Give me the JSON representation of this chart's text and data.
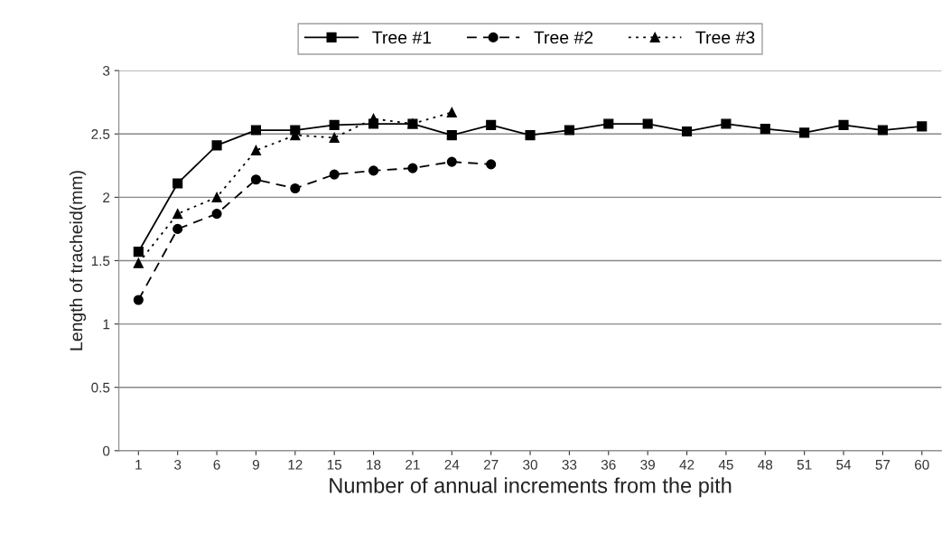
{
  "chart_data": {
    "type": "line",
    "xlabel": "Number of annual increments from the pith",
    "ylabel": "Length of tracheid(mm)",
    "categories": [
      "1",
      "3",
      "6",
      "9",
      "12",
      "15",
      "18",
      "21",
      "24",
      "27",
      "30",
      "33",
      "36",
      "39",
      "42",
      "45",
      "48",
      "51",
      "54",
      "57",
      "60"
    ],
    "series": [
      {
        "name": "Tree #1",
        "color": "#000000",
        "marker": "square",
        "line_style": "solid",
        "values": [
          1.57,
          2.11,
          2.41,
          2.53,
          2.53,
          2.57,
          2.58,
          2.58,
          2.49,
          2.57,
          2.49,
          2.53,
          2.58,
          2.58,
          2.52,
          2.58,
          2.54,
          2.51,
          2.57,
          2.53,
          2.56
        ]
      },
      {
        "name": "Tree #2",
        "color": "#000000",
        "marker": "circle",
        "line_style": "dashed",
        "values": [
          1.19,
          1.75,
          1.87,
          2.14,
          2.07,
          2.18,
          2.21,
          2.23,
          2.28,
          2.26,
          null,
          null,
          null,
          null,
          null,
          null,
          null,
          null,
          null,
          null,
          null
        ]
      },
      {
        "name": "Tree #3",
        "color": "#000000",
        "marker": "triangle",
        "line_style": "dotted",
        "values": [
          1.48,
          1.87,
          2.0,
          2.37,
          2.49,
          2.47,
          2.62,
          2.58,
          2.67,
          null,
          null,
          null,
          null,
          null,
          null,
          null,
          null,
          null,
          null,
          null,
          null
        ]
      }
    ],
    "ylim": [
      0,
      3
    ],
    "yticks": [
      0,
      0.5,
      1,
      1.5,
      2,
      2.5,
      3
    ],
    "grid": "y",
    "legend": "top"
  }
}
